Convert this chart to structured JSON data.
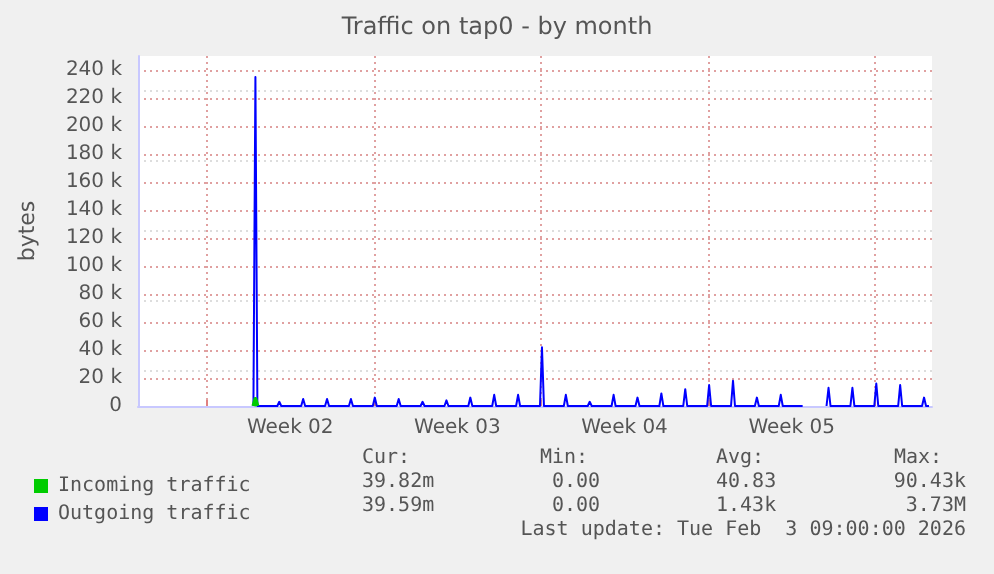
{
  "chart_data": {
    "type": "line",
    "title": "Traffic on tap0 - by month",
    "ylabel": "bytes",
    "xlim": [
      "2026-01-01T03:00",
      "2026-02-03T09:00"
    ],
    "xticks": [
      {
        "value": "2026-01-04T00:00",
        "label": null
      },
      {
        "value": "2026-01-07T12:00",
        "label": "Week 02"
      },
      {
        "value": "2026-01-11T00:00",
        "label": null
      },
      {
        "value": "2026-01-14T12:00",
        "label": "Week 03"
      },
      {
        "value": "2026-01-18T00:00",
        "label": null
      },
      {
        "value": "2026-01-21T12:00",
        "label": "Week 04"
      },
      {
        "value": "2026-01-25T00:00",
        "label": null
      },
      {
        "value": "2026-01-28T12:00",
        "label": "Week 05"
      },
      {
        "value": "2026-02-01T00:00",
        "label": null
      }
    ],
    "ylim": [
      0,
      250000
    ],
    "yticks": [
      0,
      {
        "value": 20000,
        "label": "20 k"
      },
      {
        "value": 40000,
        "label": "40 k"
      },
      {
        "value": 60000,
        "label": "60 k"
      },
      {
        "value": 80000,
        "label": "80 k"
      },
      {
        "value": 100000,
        "label": "100 k"
      },
      {
        "value": 120000,
        "label": "120 k"
      },
      {
        "value": 140000,
        "label": "140 k"
      },
      {
        "value": 160000,
        "label": "160 k"
      },
      {
        "value": 180000,
        "label": "180 k"
      },
      {
        "value": 200000,
        "label": "200 k"
      },
      {
        "value": 220000,
        "label": "220 k"
      },
      {
        "value": 240000,
        "label": "240 k"
      }
    ],
    "grid": true,
    "legend": "bottom left",
    "marker": "none",
    "line_style": "solid",
    "series": [
      {
        "name": "Incoming traffic",
        "color": "#00cc00",
        "x": [
          "2026-01-05T23:00",
          "2026-01-06T01:00",
          "2026-01-06T03:00"
        ],
        "values": [
          0,
          5000,
          0
        ]
      },
      {
        "name": "Outgoing traffic",
        "color": "#0000ff",
        "x": [
          "2026-01-05T23:00",
          "2026-01-06T01:00",
          "2026-01-06T03:00",
          "2026-01-06T23:00",
          "2026-01-07T01:00",
          "2026-01-07T03:00",
          "2026-01-07T23:00",
          "2026-01-08T01:00",
          "2026-01-08T03:00",
          "2026-01-08T23:00",
          "2026-01-09T01:00",
          "2026-01-09T03:00",
          "2026-01-09T23:00",
          "2026-01-10T01:00",
          "2026-01-10T03:00",
          "2026-01-10T23:00",
          "2026-01-11T01:00",
          "2026-01-11T03:00",
          "2026-01-11T23:00",
          "2026-01-12T01:00",
          "2026-01-12T03:00",
          "2026-01-12T23:00",
          "2026-01-13T01:00",
          "2026-01-13T03:00",
          "2026-01-13T23:00",
          "2026-01-14T01:00",
          "2026-01-14T03:00",
          "2026-01-14T23:00",
          "2026-01-15T01:00",
          "2026-01-15T03:00",
          "2026-01-15T23:00",
          "2026-01-16T01:00",
          "2026-01-16T03:00",
          "2026-01-16T23:00",
          "2026-01-17T01:00",
          "2026-01-17T03:00",
          "2026-01-17T23:00",
          "2026-01-18T01:00",
          "2026-01-18T03:00",
          "2026-01-18T23:00",
          "2026-01-19T01:00",
          "2026-01-19T03:00",
          "2026-01-19T23:00",
          "2026-01-20T01:00",
          "2026-01-20T03:00",
          "2026-01-20T23:00",
          "2026-01-21T01:00",
          "2026-01-21T03:00",
          "2026-01-21T23:00",
          "2026-01-22T01:00",
          "2026-01-22T03:00",
          "2026-01-22T23:00",
          "2026-01-23T01:00",
          "2026-01-23T03:00",
          "2026-01-23T23:00",
          "2026-01-24T01:00",
          "2026-01-24T03:00",
          "2026-01-24T23:00",
          "2026-01-25T01:00",
          "2026-01-25T03:00",
          "2026-01-25T23:00",
          "2026-01-26T01:00",
          "2026-01-26T03:00",
          "2026-01-26T23:00",
          "2026-01-27T01:00",
          "2026-01-27T03:00",
          "2026-01-27T23:00",
          "2026-01-28T01:00",
          "2026-01-28T03:00",
          "2026-01-28T23:00",
          "2026-01-29T12:00",
          "2026-01-29T23:00",
          "2026-01-30T01:00",
          "2026-01-30T03:00",
          "2026-01-30T23:00",
          "2026-01-31T01:00",
          "2026-01-31T03:00",
          "2026-01-31T23:00",
          "2026-02-01T01:00",
          "2026-02-01T03:00",
          "2026-02-01T23:00",
          "2026-02-02T01:00",
          "2026-02-02T03:00",
          "2026-02-02T23:00",
          "2026-02-03T01:00",
          "2026-02-03T03:00",
          "2026-02-03T06:00"
        ],
        "values": [
          0,
          235000,
          0,
          0,
          3000,
          0,
          0,
          5000,
          0,
          0,
          5000,
          0,
          0,
          5000,
          0,
          0,
          6000,
          0,
          0,
          5000,
          0,
          0,
          3000,
          0,
          0,
          4000,
          0,
          0,
          6000,
          0,
          0,
          8000,
          0,
          0,
          8000,
          0,
          0,
          42000,
          0,
          0,
          8000,
          0,
          0,
          3000,
          0,
          0,
          8000,
          0,
          0,
          6000,
          0,
          0,
          9000,
          0,
          0,
          12000,
          0,
          0,
          15000,
          0,
          0,
          18000,
          0,
          0,
          6000,
          0,
          0,
          8000,
          0,
          0,
          null,
          0,
          13000,
          0,
          0,
          13000,
          0,
          0,
          16000,
          0,
          0,
          15000,
          0,
          0,
          6000,
          0,
          0
        ]
      }
    ],
    "annotations": [
      "Cur:",
      "Min:",
      "Avg:",
      "Max:",
      "39.82m",
      "0.00",
      "40.83",
      "90.43k",
      "39.59m",
      "0.00",
      "1.43k",
      "3.73M",
      "Last update: Tue Feb  3 09:00:00 2026"
    ]
  }
}
